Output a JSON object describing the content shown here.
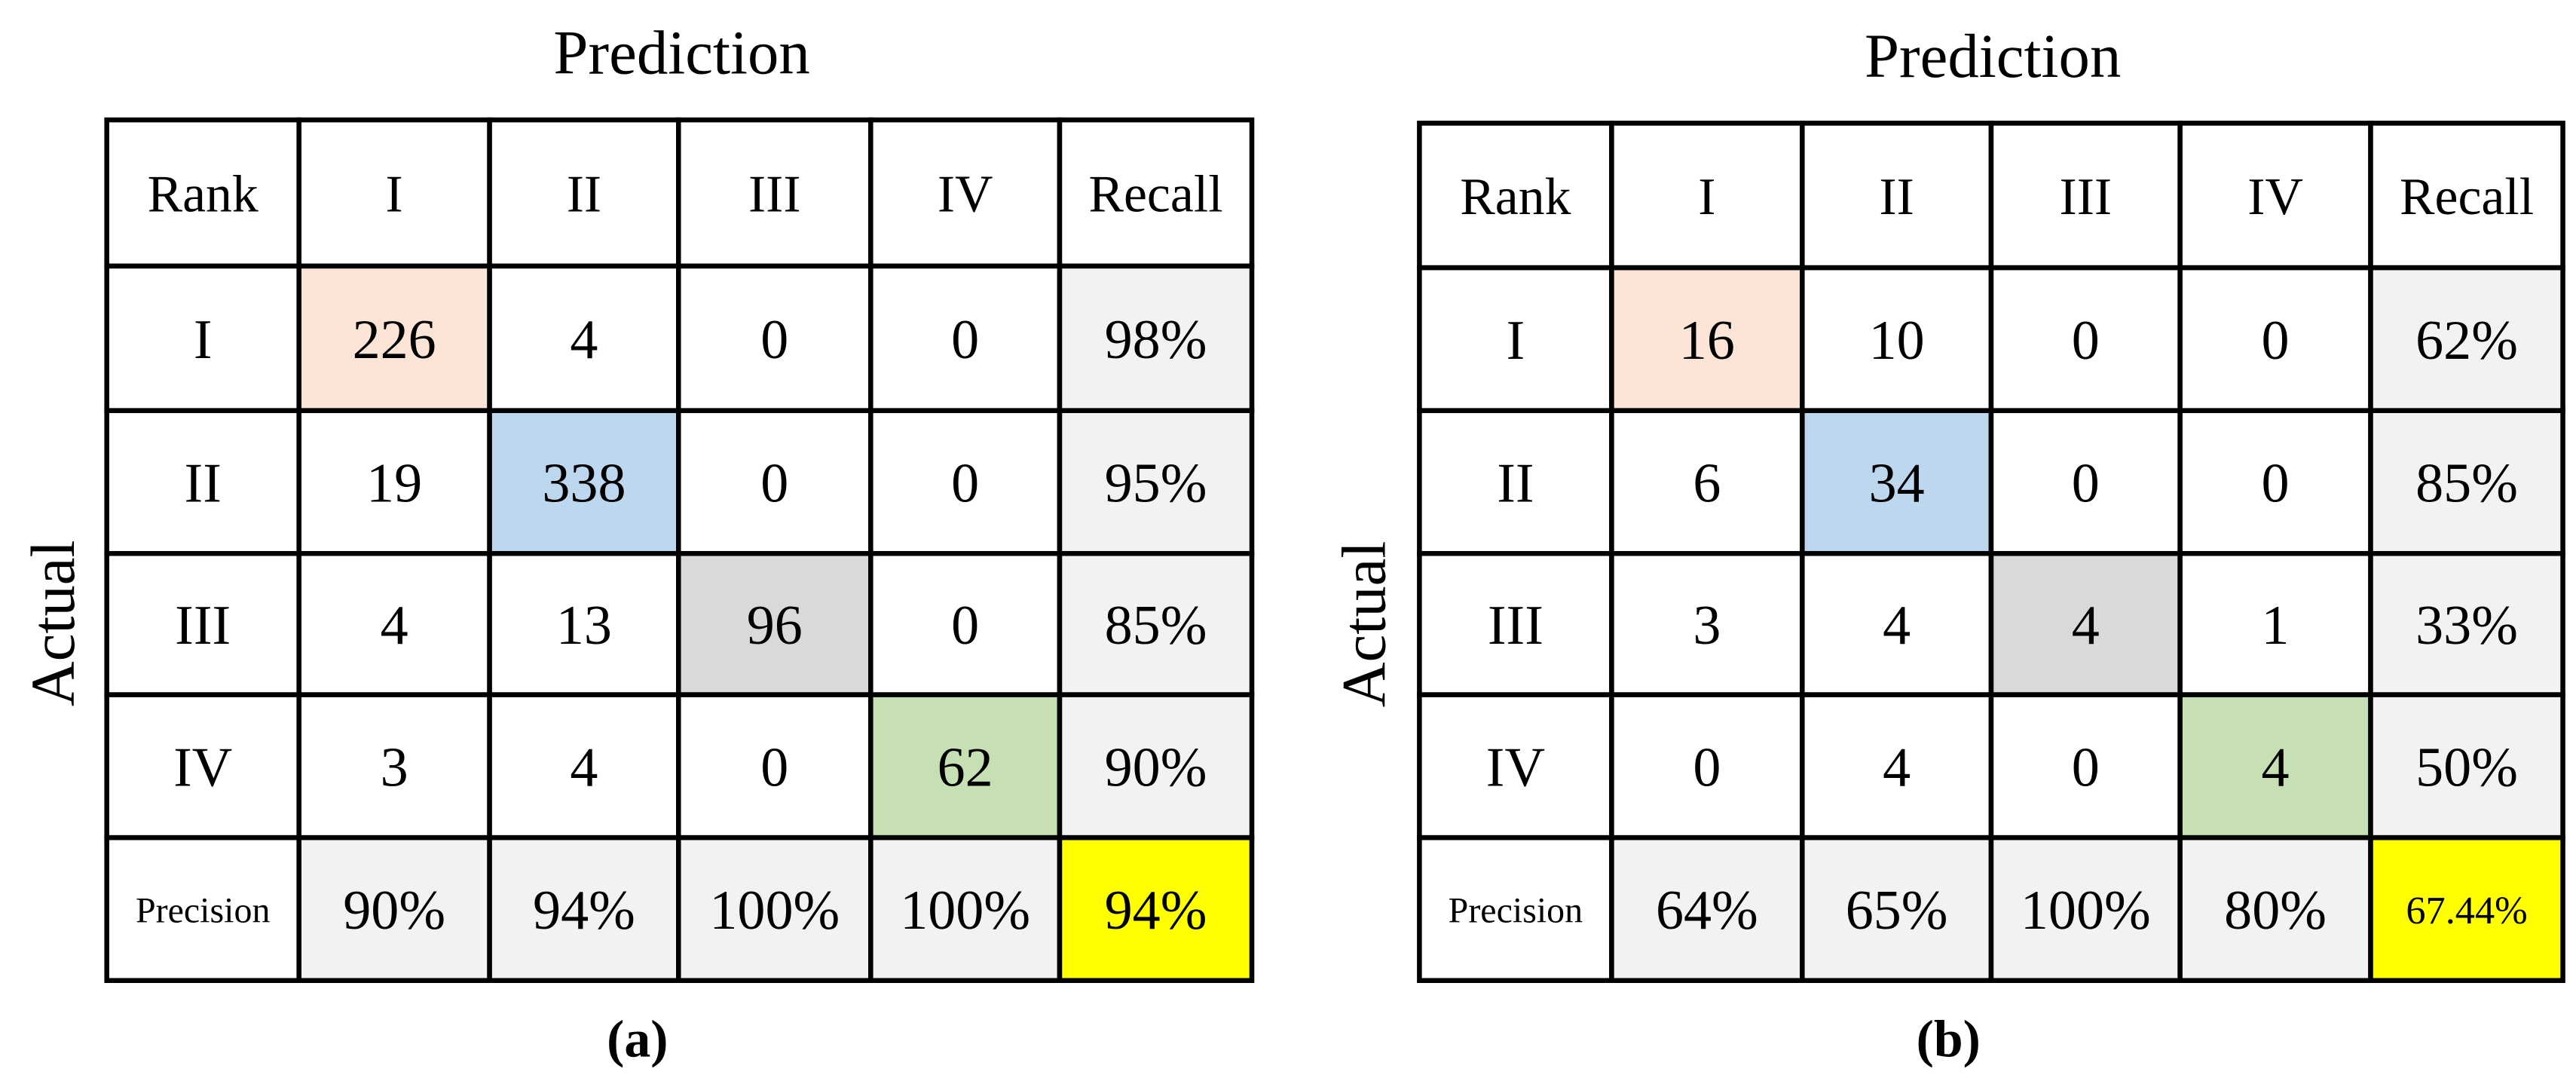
{
  "panels": [
    {
      "header": "Prediction",
      "side_label": "Actual",
      "caption": "(a)",
      "rows": [
        [
          "Rank",
          "I",
          "II",
          "III",
          "IV",
          "Recall"
        ],
        [
          "I",
          "226",
          "4",
          "0",
          "0",
          "98%"
        ],
        [
          "II",
          "19",
          "338",
          "0",
          "0",
          "95%"
        ],
        [
          "III",
          "4",
          "13",
          "96",
          "0",
          "85%"
        ],
        [
          "IV",
          "3",
          "4",
          "0",
          "62",
          "90%"
        ],
        [
          "Precision",
          "90%",
          "94%",
          "100%",
          "100%",
          "94%"
        ]
      ]
    },
    {
      "header": "Prediction",
      "side_label": "Actual",
      "caption": "(b)",
      "rows": [
        [
          "Rank",
          "I",
          "II",
          "III",
          "IV",
          "Recall"
        ],
        [
          "I",
          "16",
          "10",
          "0",
          "0",
          "62%"
        ],
        [
          "II",
          "6",
          "34",
          "0",
          "0",
          "85%"
        ],
        [
          "III",
          "3",
          "4",
          "4",
          "1",
          "33%"
        ],
        [
          "IV",
          "0",
          "4",
          "0",
          "4",
          "50%"
        ],
        [
          "Precision",
          "64%",
          "65%",
          "100%",
          "80%",
          "67.44%"
        ]
      ]
    }
  ]
}
